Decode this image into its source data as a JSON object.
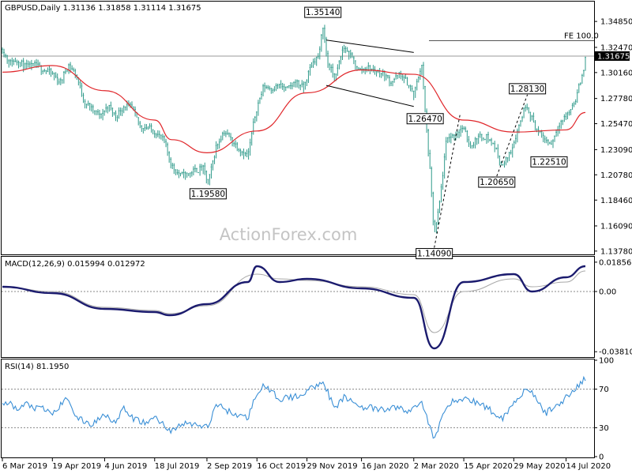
{
  "colors": {
    "candle": "#2f9a8a",
    "ma": "#e0262a",
    "macd": "#1b1b6e",
    "macd_signal": "#a8a8a8",
    "rsi": "#3a8fd6",
    "level": "#555555",
    "frame": "#000000"
  },
  "watermark": "ActionForex.com",
  "chart_data": [
    {
      "type": "candlestick",
      "header": "GBPUSD,Daily  1.31136 1.31858 1.31114 1.31675",
      "symbol": "GBPUSD",
      "timeframe": "Daily",
      "ohlc_last": {
        "open": 1.31136,
        "high": 1.31858,
        "low": 1.31114,
        "close": 1.31675
      },
      "ylim": [
        1.1355,
        1.366
      ],
      "y_ticks": [
        "1.34850",
        "1.32470",
        "1.30160",
        "1.27780",
        "1.25470",
        "1.23090",
        "1.20780",
        "1.18460",
        "1.16090",
        "1.13780"
      ],
      "current_price": "1.31675",
      "x_ticks": [
        "6 Mar 2019",
        "19 Apr 2019",
        "4 Jun 2019",
        "18 Jul 2019",
        "2 Sep 2019",
        "16 Oct 2019",
        "29 Nov 2019",
        "16 Jan 2020",
        "2 Mar 2020",
        "15 Apr 2020",
        "29 May 2020",
        "14 Jul 2020"
      ],
      "price_path": [
        [
          "6 Mar 2019",
          1.323
        ],
        [
          "12 Mar 2019",
          1.31
        ],
        [
          "19 Mar 2019",
          1.313
        ],
        [
          "27 Mar 2019",
          1.306
        ],
        [
          "4 Apr 2019",
          1.308
        ],
        [
          "12 Apr 2019",
          1.304
        ],
        [
          "19 Apr 2019",
          1.3
        ],
        [
          "26 Apr 2019",
          1.292
        ],
        [
          "3 May 2019",
          1.309
        ],
        [
          "10 May 2019",
          1.299
        ],
        [
          "17 May 2019",
          1.275
        ],
        [
          "24 May 2019",
          1.267
        ],
        [
          "31 May 2019",
          1.261
        ],
        [
          "7 Jun 2019",
          1.271
        ],
        [
          "14 Jun 2019",
          1.261
        ],
        [
          "21 Jun 2019",
          1.271
        ],
        [
          "28 Jun 2019",
          1.269
        ],
        [
          "5 Jul 2019",
          1.252
        ],
        [
          "12 Jul 2019",
          1.251
        ],
        [
          "19 Jul 2019",
          1.246
        ],
        [
          "26 Jul 2019",
          1.239
        ],
        [
          "2 Aug 2019",
          1.216
        ],
        [
          "9 Aug 2019",
          1.207
        ],
        [
          "16 Aug 2019",
          1.208
        ],
        [
          "23 Aug 2019",
          1.212
        ],
        [
          "30 Aug 2019",
          1.213
        ],
        [
          "3 Sep 2019",
          1.199
        ],
        [
          "10 Sep 2019",
          1.233
        ],
        [
          "17 Sep 2019",
          1.248
        ],
        [
          "24 Sep 2019",
          1.239
        ],
        [
          "1 Oct 2019",
          1.231
        ],
        [
          "8 Oct 2019",
          1.224
        ],
        [
          "15 Oct 2019",
          1.266
        ],
        [
          "22 Oct 2019",
          1.289
        ],
        [
          "29 Oct 2019",
          1.287
        ],
        [
          "5 Nov 2019",
          1.289
        ],
        [
          "12 Nov 2019",
          1.286
        ],
        [
          "19 Nov 2019",
          1.293
        ],
        [
          "26 Nov 2019",
          1.287
        ],
        [
          "3 Dec 2019",
          1.309
        ],
        [
          "10 Dec 2019",
          1.318
        ],
        [
          "13 Dec 2019",
          1.346
        ],
        [
          "17 Dec 2019",
          1.31
        ],
        [
          "24 Dec 2019",
          1.296
        ],
        [
          "31 Dec 2019",
          1.325
        ],
        [
          "7 Jan 2020",
          1.315
        ],
        [
          "14 Jan 2020",
          1.303
        ],
        [
          "21 Jan 2020",
          1.306
        ],
        [
          "28 Jan 2020",
          1.303
        ],
        [
          "4 Feb 2020",
          1.3
        ],
        [
          "11 Feb 2020",
          1.293
        ],
        [
          "18 Feb 2020",
          1.299
        ],
        [
          "25 Feb 2020",
          1.293
        ],
        [
          "2 Mar 2020",
          1.28
        ],
        [
          "9 Mar 2020",
          1.31
        ],
        [
          "12 Mar 2020",
          1.264
        ],
        [
          "16 Mar 2020",
          1.214
        ],
        [
          "20 Mar 2020",
          1.151
        ],
        [
          "24 Mar 2020",
          1.175
        ],
        [
          "31 Mar 2020",
          1.241
        ],
        [
          "7 Apr 2020",
          1.244
        ],
        [
          "14 Apr 2020",
          1.251
        ],
        [
          "21 Apr 2020",
          1.234
        ],
        [
          "28 Apr 2020",
          1.242
        ],
        [
          "5 May 2020",
          1.243
        ],
        [
          "12 May 2020",
          1.234
        ],
        [
          "19 May 2020",
          1.215
        ],
        [
          "26 May 2020",
          1.228
        ],
        [
          "2 Jun 2020",
          1.251
        ],
        [
          "9 Jun 2020",
          1.274
        ],
        [
          "12 Jun 2020",
          1.264
        ],
        [
          "19 Jun 2020",
          1.247
        ],
        [
          "26 Jun 2020",
          1.239
        ],
        [
          "1 Jul 2020",
          1.236
        ],
        [
          "8 Jul 2020",
          1.255
        ],
        [
          "15 Jul 2020",
          1.262
        ],
        [
          "22 Jul 2020",
          1.276
        ],
        [
          "29 Jul 2020",
          1.301
        ],
        [
          "31 Jul 2020",
          1.317
        ]
      ],
      "moving_average": [
        [
          "6 Mar 2019",
          1.302
        ],
        [
          "19 Apr 2019",
          1.308
        ],
        [
          "4 Jun 2019",
          1.285
        ],
        [
          "18 Jul 2019",
          1.258
        ],
        [
          "2 Aug 2019",
          1.24
        ],
        [
          "2 Sep 2019",
          1.228
        ],
        [
          "16 Oct 2019",
          1.248
        ],
        [
          "29 Nov 2019",
          1.283
        ],
        [
          "16 Jan 2020",
          1.304
        ],
        [
          "2 Mar 2020",
          1.3
        ],
        [
          "15 Apr 2020",
          1.258
        ],
        [
          "29 May 2020",
          1.247
        ],
        [
          "14 Jul 2020",
          1.249
        ],
        [
          "31 Jul 2020",
          1.265
        ]
      ],
      "annotations": [
        {
          "text": "1.35140",
          "date": "13 Dec 2019",
          "price": 1.3514
        },
        {
          "text": "1.19580",
          "date": "3 Sep 2019",
          "price": 1.1958
        },
        {
          "text": "1.26470",
          "date": "12 Mar 2020",
          "price": 1.2647
        },
        {
          "text": "1.14090",
          "date": "20 Mar 2020",
          "price": 1.1409
        },
        {
          "text": "1.28130",
          "date": "10 Jun 2020",
          "price": 1.2813
        },
        {
          "text": "1.20650",
          "date": "14 May 2020",
          "price": 1.2065
        },
        {
          "text": "1.22510",
          "date": "29 Jun 2020",
          "price": 1.2251
        }
      ],
      "fe_label": "FE 100.0",
      "fe_level": 1.3308,
      "channel": {
        "upper": [
          [
            "16 Dec 2019",
            1.3314
          ],
          [
            "2 Mar 2020",
            1.3201
          ]
        ],
        "lower": [
          [
            "16 Dec 2019",
            1.2898
          ],
          [
            "2 Mar 2020",
            1.2705
          ]
        ]
      },
      "dashed_projection": [
        [
          "20 Mar 2020",
          1.1409
        ],
        [
          "12 Apr 2020",
          1.2647
        ]
      ],
      "dashed_projection_2": [
        [
          "14 May 2020",
          1.2065
        ],
        [
          "10 Jun 2020",
          1.2813
        ]
      ]
    },
    {
      "type": "line",
      "header": "MACD(12,26,9) 0.015994 0.012972",
      "indicator": "MACD(12,26,9)",
      "values_shown": [
        "0.015994",
        "0.012972"
      ],
      "ylim": [
        -0.041,
        0.0215
      ],
      "y_ticks": [
        "0.018569",
        "0.00",
        "-0.038101"
      ],
      "series": [
        {
          "values": [
            [
              "6 Mar 2019",
              0.003
            ],
            [
              "19 Apr 2019",
              -0.001
            ],
            [
              "4 Jun 2019",
              -0.011
            ],
            [
              "18 Jul 2019",
              -0.013
            ],
            [
              "31 Jul 2019",
              -0.015
            ],
            [
              "2 Sep 2019",
              -0.008
            ],
            [
              "8 Oct 2019",
              0.006
            ],
            [
              "16 Oct 2019",
              0.016
            ],
            [
              "5 Nov 2019",
              0.006
            ],
            [
              "29 Nov 2019",
              0.008
            ],
            [
              "16 Jan 2020",
              0.002
            ],
            [
              "2 Mar 2020",
              -0.004
            ],
            [
              "20 Mar 2020",
              -0.036
            ],
            [
              "15 Apr 2020",
              0.006
            ],
            [
              "29 May 2020",
              0.011
            ],
            [
              "14 Jun 2020",
              0.0
            ],
            [
              "14 Jul 2020",
              0.009
            ],
            [
              "31 Jul 2020",
              0.016
            ]
          ]
        },
        {
          "values": [
            [
              "6 Mar 2019",
              0.003
            ],
            [
              "19 Apr 2019",
              0.0
            ],
            [
              "4 Jun 2019",
              -0.01
            ],
            [
              "18 Jul 2019",
              -0.012
            ],
            [
              "31 Jul 2019",
              -0.014
            ],
            [
              "2 Sep 2019",
              -0.009
            ],
            [
              "16 Oct 2019",
              0.011
            ],
            [
              "5 Nov 2019",
              0.008
            ],
            [
              "29 Nov 2019",
              0.007
            ],
            [
              "16 Jan 2020",
              0.003
            ],
            [
              "2 Mar 2020",
              -0.002
            ],
            [
              "20 Mar 2020",
              -0.026
            ],
            [
              "15 Apr 2020",
              0.0
            ],
            [
              "29 May 2020",
              0.008
            ],
            [
              "14 Jun 2020",
              0.003
            ],
            [
              "14 Jul 2020",
              0.006
            ],
            [
              "31 Jul 2020",
              0.013
            ]
          ]
        }
      ]
    },
    {
      "type": "line",
      "header": "RSI(14) 81.1950",
      "indicator": "RSI(14)",
      "value_shown": "81.1950",
      "ylim": [
        0,
        100
      ],
      "y_ticks": [
        "100",
        "70",
        "30",
        "0"
      ],
      "levels": [
        70,
        30
      ],
      "series": [
        {
          "values": [
            [
              "6 Mar 2019",
              52
            ],
            [
              "12 Mar 2019",
              56
            ],
            [
              "19 Mar 2019",
              48
            ],
            [
              "27 Mar 2019",
              55
            ],
            [
              "4 Apr 2019",
              50
            ],
            [
              "12 Apr 2019",
              49
            ],
            [
              "19 Apr 2019",
              44
            ],
            [
              "3 May 2019",
              62
            ],
            [
              "10 May 2019",
              40
            ],
            [
              "24 May 2019",
              33
            ],
            [
              "4 Jun 2019",
              45
            ],
            [
              "14 Jun 2019",
              35
            ],
            [
              "21 Jun 2019",
              50
            ],
            [
              "28 Jun 2019",
              40
            ],
            [
              "12 Jul 2019",
              34
            ],
            [
              "18 Jul 2019",
              42
            ],
            [
              "31 Jul 2019",
              27
            ],
            [
              "16 Aug 2019",
              35
            ],
            [
              "3 Sep 2019",
              30
            ],
            [
              "10 Sep 2019",
              55
            ],
            [
              "24 Sep 2019",
              45
            ],
            [
              "8 Oct 2019",
              40
            ],
            [
              "16 Oct 2019",
              67
            ],
            [
              "22 Oct 2019",
              73
            ],
            [
              "5 Nov 2019",
              60
            ],
            [
              "19 Nov 2019",
              62
            ],
            [
              "29 Nov 2019",
              68
            ],
            [
              "13 Dec 2019",
              79
            ],
            [
              "24 Dec 2019",
              48
            ],
            [
              "31 Dec 2019",
              62
            ],
            [
              "16 Jan 2020",
              52
            ],
            [
              "4 Feb 2020",
              48
            ],
            [
              "18 Feb 2020",
              52
            ],
            [
              "25 Feb 2020",
              45
            ],
            [
              "9 Mar 2020",
              58
            ],
            [
              "20 Mar 2020",
              16
            ],
            [
              "31 Mar 2020",
              55
            ],
            [
              "15 Apr 2020",
              60
            ],
            [
              "28 Apr 2020",
              56
            ],
            [
              "19 May 2020",
              40
            ],
            [
              "2 Jun 2020",
              62
            ],
            [
              "10 Jun 2020",
              72
            ],
            [
              "26 Jun 2020",
              45
            ],
            [
              "8 Jul 2020",
              55
            ],
            [
              "22 Jul 2020",
              70
            ],
            [
              "31 Jul 2020",
              81
            ]
          ]
        }
      ]
    }
  ]
}
